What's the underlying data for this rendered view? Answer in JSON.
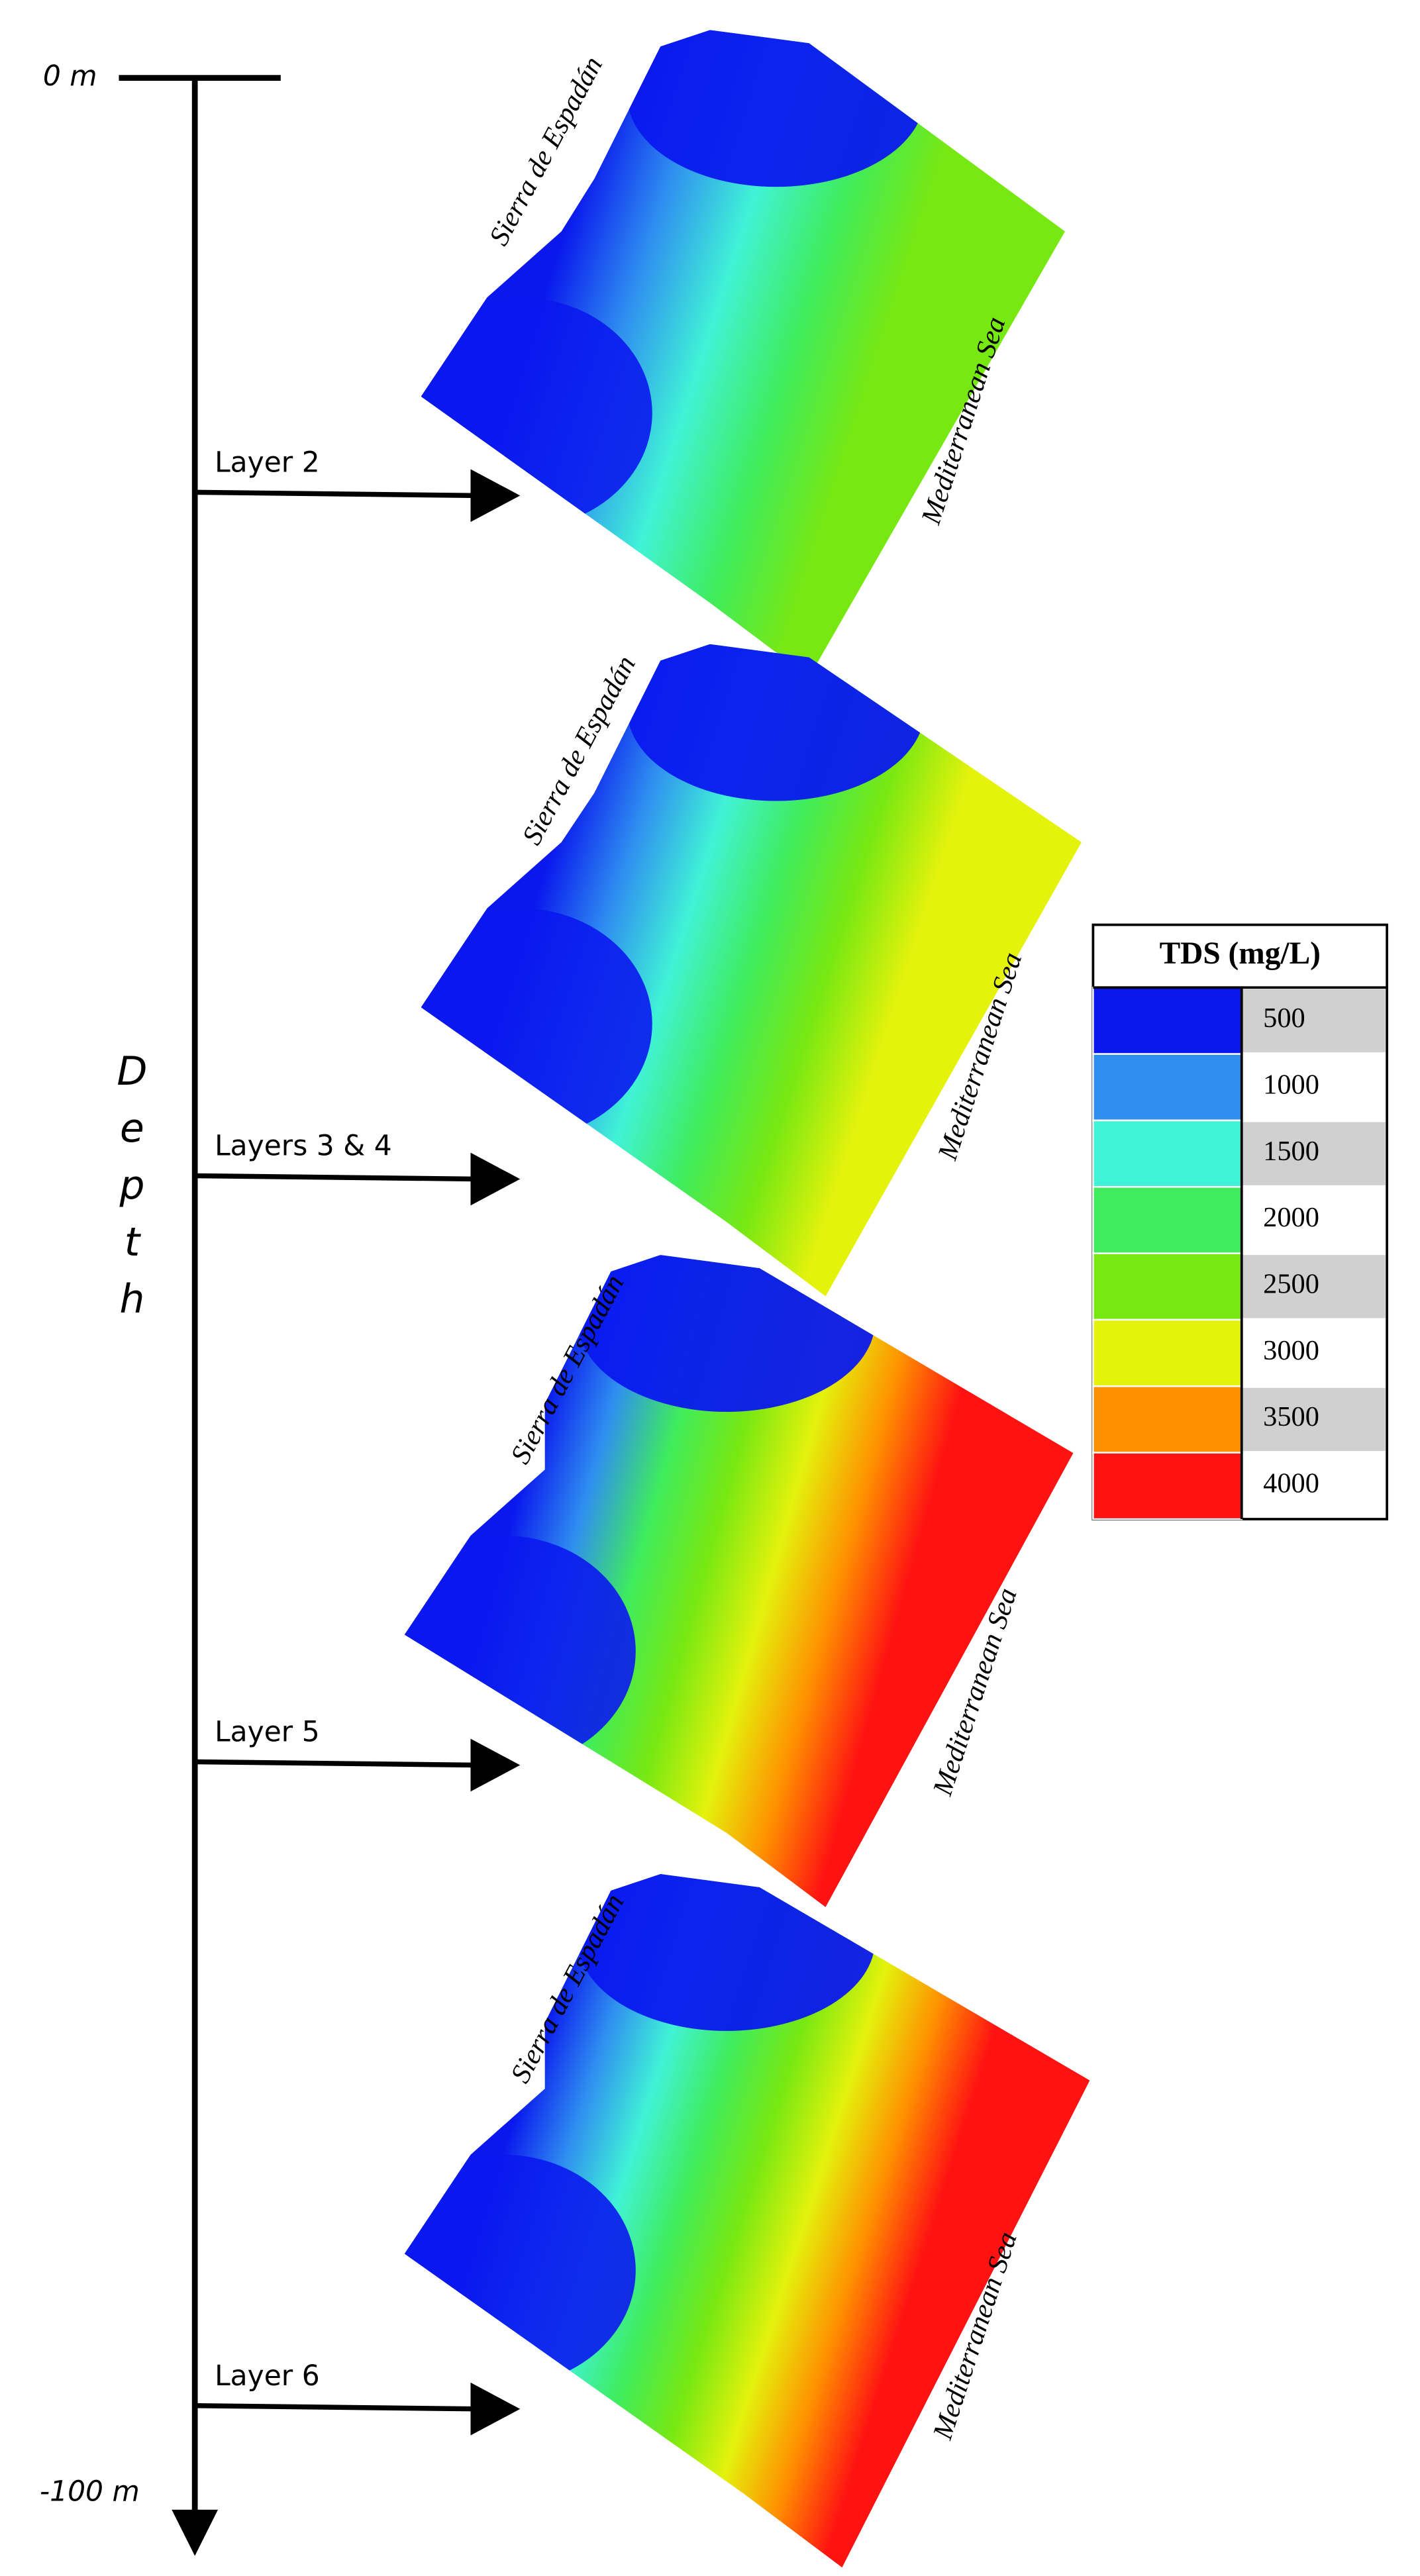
{
  "axis": {
    "top_label": "0 m",
    "bottom_label": "-100 m",
    "label": "Depth"
  },
  "layers": [
    {
      "label": "Layer 2",
      "sierra": "Sierra de Espadán",
      "sea": "Mediterranean Sea"
    },
    {
      "label": "Layers 3 & 4",
      "sierra": "Sierra de Espadán",
      "sea": "Mediterranean Sea"
    },
    {
      "label": "Layer 5",
      "sierra": "Sierra de Espadán",
      "sea": "Mediterranean Sea"
    },
    {
      "label": "Layer 6",
      "sierra": "Sierra de Espadán",
      "sea": "Mediterranean Sea"
    }
  ],
  "legend": {
    "title": "TDS (mg/L)",
    "entries": [
      {
        "value": 500,
        "color": "#0a18ee"
      },
      {
        "value": 1000,
        "color": "#2f8ff0"
      },
      {
        "value": 1500,
        "color": "#40f3d6"
      },
      {
        "value": 2000,
        "color": "#3fec5c"
      },
      {
        "value": 2500,
        "color": "#78e812"
      },
      {
        "value": 3000,
        "color": "#e4f20c"
      },
      {
        "value": 3500,
        "color": "#ff9000"
      },
      {
        "value": 4000,
        "color": "#ff1212"
      }
    ]
  }
}
